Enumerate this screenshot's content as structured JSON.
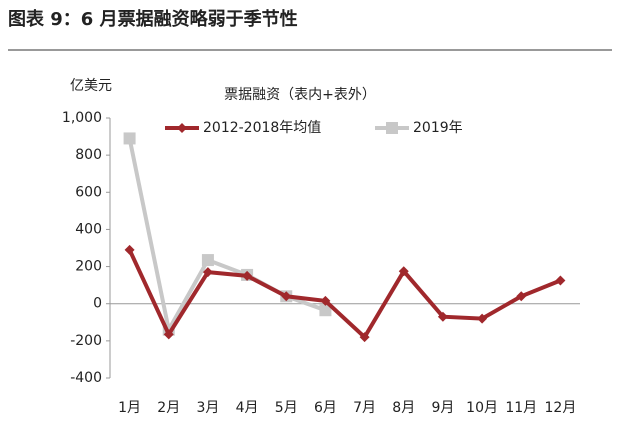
{
  "header": {
    "title": "图表 9：6 月票据融资略弱于季节性"
  },
  "chart_data": {
    "type": "line",
    "title": "票据融资（表内+表外）",
    "y_label": "亿美元",
    "categories": [
      "1月",
      "2月",
      "3月",
      "4月",
      "5月",
      "6月",
      "7月",
      "8月",
      "9月",
      "10月",
      "11月",
      "12月"
    ],
    "series": [
      {
        "name": "2012-2018年均值",
        "color": "#a0282c",
        "marker": "diamond",
        "values": [
          290,
          -165,
          170,
          150,
          40,
          15,
          -180,
          175,
          -70,
          -80,
          40,
          125
        ]
      },
      {
        "name": "2019年",
        "color": "#c8c8c8",
        "marker": "square",
        "values": [
          890,
          -140,
          235,
          155,
          40,
          -35,
          null,
          null,
          null,
          null,
          null,
          null
        ]
      }
    ],
    "ylim": [
      -400,
      1000
    ],
    "yticks": [
      -400,
      -200,
      0,
      200,
      400,
      600,
      800,
      {
        "value": 1000,
        "label": "1,000"
      }
    ],
    "legend": "top"
  }
}
